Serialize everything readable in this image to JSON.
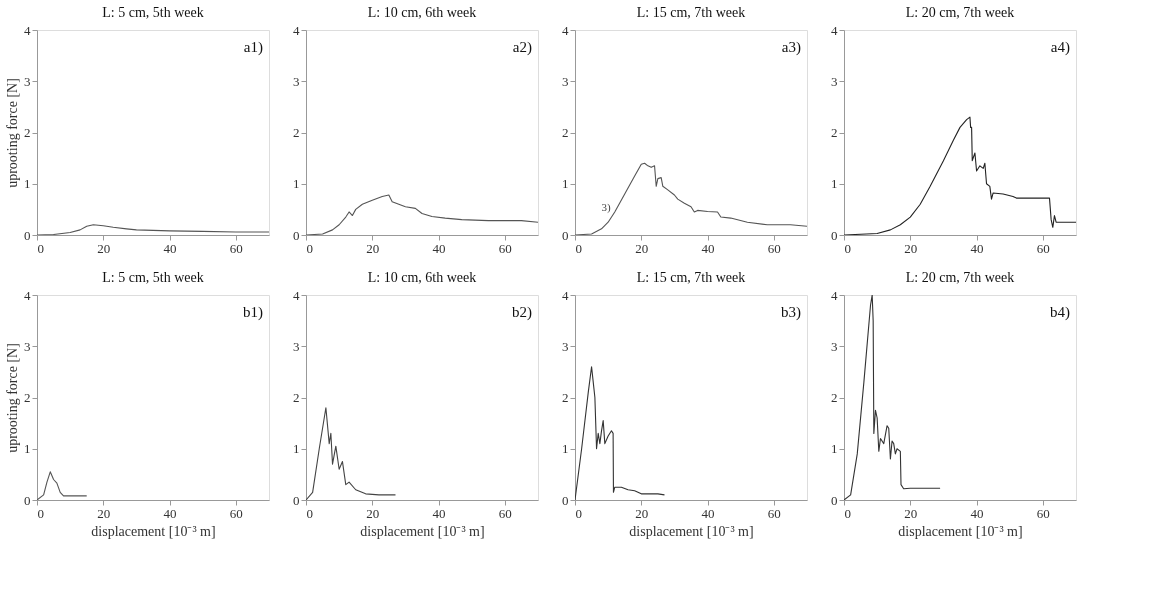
{
  "chart_data": [
    {
      "type": "line",
      "title": "L: 5 cm, 5th week",
      "ylabel": "uprooting force [N]",
      "annotations": [
        "a1)"
      ],
      "xlim": [
        0,
        70
      ],
      "ylim": [
        0,
        4
      ],
      "xticks": [
        0,
        20,
        40,
        60
      ],
      "yticks": [
        0,
        1,
        2,
        3,
        4
      ],
      "grid": false,
      "color": "#555555",
      "x": [
        0,
        5,
        10,
        13,
        15,
        17,
        20,
        23,
        27,
        30,
        40,
        50,
        60,
        70
      ],
      "values": [
        0,
        0.01,
        0.05,
        0.1,
        0.17,
        0.2,
        0.18,
        0.15,
        0.12,
        0.1,
        0.08,
        0.07,
        0.06,
        0.06
      ]
    },
    {
      "type": "line",
      "title": "L: 10 cm, 6th week",
      "annotations": [
        "a2)"
      ],
      "xlim": [
        0,
        70
      ],
      "ylim": [
        0,
        4
      ],
      "xticks": [
        0,
        20,
        40,
        60
      ],
      "yticks": [
        0,
        1,
        2,
        3,
        4
      ],
      "grid": false,
      "color": "#555555",
      "x": [
        0,
        5,
        8,
        10,
        12,
        13,
        14,
        15,
        17,
        20,
        23,
        25,
        26,
        28,
        30,
        33,
        35,
        38,
        42,
        47,
        55,
        65,
        70
      ],
      "values": [
        0,
        0.02,
        0.1,
        0.2,
        0.35,
        0.45,
        0.38,
        0.5,
        0.6,
        0.68,
        0.75,
        0.78,
        0.65,
        0.6,
        0.55,
        0.52,
        0.42,
        0.36,
        0.33,
        0.3,
        0.28,
        0.28,
        0.25
      ]
    },
    {
      "type": "line",
      "title": "L: 15 cm, 7th week",
      "annotations": [
        "a3)",
        {
          "text": "3)",
          "x": 12,
          "y": 0.45
        }
      ],
      "xlim": [
        0,
        70
      ],
      "ylim": [
        0,
        4
      ],
      "xticks": [
        0,
        20,
        40,
        60
      ],
      "yticks": [
        0,
        1,
        2,
        3,
        4
      ],
      "grid": false,
      "color": "#555555",
      "x": [
        0,
        5,
        8,
        10,
        12,
        15,
        18,
        20,
        21,
        22,
        23,
        24,
        24.5,
        25,
        26,
        26.5,
        28,
        30,
        31,
        33,
        35,
        36,
        37,
        40,
        43,
        44,
        47,
        52,
        58,
        65,
        70
      ],
      "values": [
        0,
        0.02,
        0.12,
        0.25,
        0.45,
        0.8,
        1.15,
        1.38,
        1.4,
        1.35,
        1.32,
        1.35,
        0.95,
        1.1,
        1.12,
        0.95,
        0.88,
        0.78,
        0.7,
        0.62,
        0.55,
        0.45,
        0.48,
        0.46,
        0.45,
        0.35,
        0.33,
        0.25,
        0.2,
        0.2,
        0.17
      ]
    },
    {
      "type": "line",
      "title": "L: 20 cm, 7th week",
      "annotations": [
        "a4)"
      ],
      "xlim": [
        0,
        70
      ],
      "ylim": [
        0,
        4
      ],
      "xticks": [
        0,
        20,
        40,
        60
      ],
      "yticks": [
        0,
        1,
        2,
        3,
        4
      ],
      "grid": false,
      "color": "#222222",
      "x": [
        0,
        10,
        14,
        17,
        20,
        23,
        26,
        30,
        33,
        35,
        37,
        38,
        38.2,
        38.5,
        38.7,
        39.5,
        40,
        41,
        42,
        42.5,
        43,
        44,
        44.5,
        45,
        48,
        51,
        52,
        55,
        60,
        62,
        62.5,
        63,
        63.5,
        64,
        70
      ],
      "values": [
        0,
        0.03,
        0.1,
        0.2,
        0.35,
        0.6,
        0.95,
        1.45,
        1.85,
        2.1,
        2.25,
        2.3,
        2.1,
        2.1,
        1.45,
        1.6,
        1.25,
        1.35,
        1.3,
        1.4,
        1.0,
        0.95,
        0.7,
        0.82,
        0.8,
        0.75,
        0.72,
        0.72,
        0.72,
        0.72,
        0.3,
        0.15,
        0.38,
        0.25,
        0.25
      ]
    },
    {
      "type": "line",
      "title": "L: 5 cm, 5th week",
      "ylabel": "uprooting force [N]",
      "xlabel": "displacement [10⁻³ m]",
      "annotations": [
        "b1)"
      ],
      "xlim": [
        0,
        70
      ],
      "ylim": [
        0,
        4
      ],
      "xticks": [
        0,
        20,
        40,
        60
      ],
      "yticks": [
        0,
        1,
        2,
        3,
        4
      ],
      "grid": false,
      "color": "#555555",
      "x": [
        0,
        2,
        3,
        4,
        5,
        6,
        7,
        8,
        15
      ],
      "values": [
        0,
        0.1,
        0.35,
        0.55,
        0.4,
        0.33,
        0.15,
        0.08,
        0.08
      ]
    },
    {
      "type": "line",
      "title": "L: 10 cm, 6th week",
      "xlabel": "displacement [10⁻³ m]",
      "annotations": [
        "b2)"
      ],
      "xlim": [
        0,
        70
      ],
      "ylim": [
        0,
        4
      ],
      "xticks": [
        0,
        20,
        40,
        60
      ],
      "yticks": [
        0,
        1,
        2,
        3,
        4
      ],
      "grid": false,
      "color": "#444444",
      "x": [
        0,
        2,
        4,
        6,
        7,
        7.5,
        8,
        9,
        10,
        11,
        12,
        13,
        15,
        18,
        22,
        27
      ],
      "values": [
        0,
        0.15,
        1.0,
        1.8,
        1.1,
        1.3,
        0.7,
        1.05,
        0.6,
        0.75,
        0.3,
        0.35,
        0.2,
        0.12,
        0.1,
        0.1
      ]
    },
    {
      "type": "line",
      "title": "L: 15 cm, 7th week",
      "xlabel": "displacement [10⁻³ m]",
      "annotations": [
        "b3)"
      ],
      "xlim": [
        0,
        70
      ],
      "ylim": [
        0,
        4
      ],
      "xticks": [
        0,
        20,
        40,
        60
      ],
      "yticks": [
        0,
        1,
        2,
        3,
        4
      ],
      "grid": false,
      "color": "#333333",
      "x": [
        0,
        2,
        4,
        5,
        5.5,
        6,
        6.5,
        7,
        7.5,
        8,
        8.5,
        9,
        10,
        11,
        11.5,
        11.6,
        12,
        14,
        16,
        18,
        20,
        25,
        27
      ],
      "values": [
        0,
        1.0,
        2.1,
        2.6,
        2.3,
        2.0,
        1.0,
        1.3,
        1.1,
        1.35,
        1.55,
        1.1,
        1.25,
        1.35,
        1.3,
        0.15,
        0.25,
        0.25,
        0.2,
        0.18,
        0.12,
        0.12,
        0.1
      ]
    },
    {
      "type": "line",
      "title": "L: 20 cm, 7th week",
      "xlabel": "displacement [10⁻³ m]",
      "annotations": [
        "b4)"
      ],
      "xlim": [
        0,
        70
      ],
      "ylim": [
        0,
        4
      ],
      "xticks": [
        0,
        20,
        40,
        60
      ],
      "yticks": [
        0,
        1,
        2,
        3,
        4
      ],
      "grid": false,
      "color": "#333333",
      "x": [
        0,
        2,
        4,
        6,
        8,
        8.5,
        8.8,
        9,
        9.5,
        10,
        10.5,
        11,
        12,
        13,
        13.5,
        14,
        14.5,
        15,
        15.5,
        16,
        17,
        17.2,
        18,
        20,
        29
      ],
      "values": [
        0,
        0.1,
        0.9,
        2.3,
        3.8,
        4.0,
        3.5,
        1.3,
        1.75,
        1.6,
        0.95,
        1.2,
        1.1,
        1.45,
        1.4,
        0.8,
        1.15,
        1.1,
        0.9,
        1.0,
        0.95,
        0.3,
        0.22,
        0.23,
        0.23
      ]
    }
  ]
}
